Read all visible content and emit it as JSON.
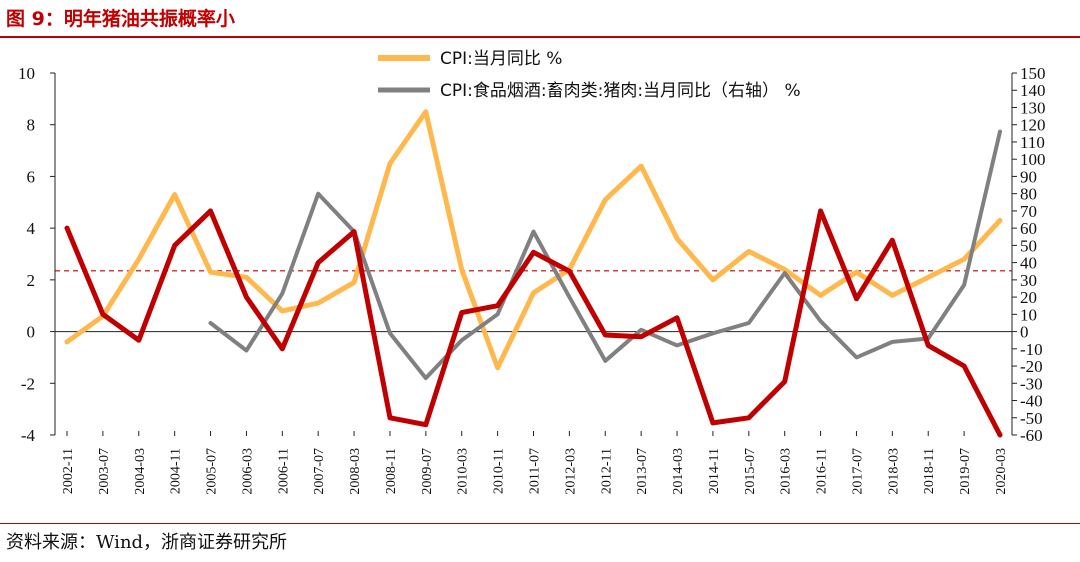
{
  "figure_title": "图 9：明年猪油共振概率小",
  "source": "资料来源：Wind，浙商证券研究所",
  "colors": {
    "title": "#c00000",
    "cpi": "#ffb84d",
    "food": "#808080",
    "pork": "#c00000",
    "reference_line": "#c00000"
  },
  "chart_data": {
    "type": "line",
    "x": [
      "2002-11",
      "2003-07",
      "2004-03",
      "2004-11",
      "2005-07",
      "2006-03",
      "2006-11",
      "2007-07",
      "2008-03",
      "2008-11",
      "2009-07",
      "2010-03",
      "2010-11",
      "2011-07",
      "2012-03",
      "2012-11",
      "2013-07",
      "2014-03",
      "2014-11",
      "2015-07",
      "2016-03",
      "2016-11",
      "2017-07",
      "2018-03",
      "2018-11",
      "2019-07",
      "2020-03"
    ],
    "ylim_left": [
      -4,
      10
    ],
    "yticks_left": [
      -4,
      -2,
      0,
      2,
      4,
      6,
      8,
      10
    ],
    "ylim_right": [
      -60,
      150
    ],
    "yticks_right": [
      -60,
      -50,
      -40,
      -30,
      -20,
      -10,
      0,
      10,
      20,
      30,
      40,
      50,
      60,
      70,
      80,
      90,
      100,
      110,
      120,
      130,
      140,
      150
    ],
    "reference_line": {
      "axis": "left",
      "value": 2.35,
      "style": "dashed"
    },
    "series": [
      {
        "name": "CPI:当月同比 %",
        "axis": "left",
        "values": [
          -0.4,
          0.6,
          2.8,
          5.3,
          2.3,
          2.1,
          0.8,
          1.1,
          1.9,
          6.5,
          8.5,
          2.4,
          -1.4,
          1.5,
          2.4,
          5.1,
          6.4,
          3.6,
          2.0,
          3.1,
          2.4,
          1.4,
          2.3,
          1.4,
          2.1,
          2.8,
          4.3
        ]
      },
      {
        "name": "CPI:食品烟酒:畜肉类:猪肉:当月同比（右轴） %",
        "axis": "right",
        "values": [
          null,
          null,
          null,
          null,
          5,
          -11,
          22,
          80,
          58,
          -1,
          -27,
          -5,
          10,
          58,
          20,
          -17,
          1,
          -8,
          -1,
          5,
          34,
          6,
          -15,
          -6,
          -4,
          27,
          116
        ]
      },
      {
        "name": "",
        "axis": "right",
        "values": [
          60,
          10,
          -5,
          50,
          70,
          20,
          -10,
          40,
          58,
          -50,
          -54,
          11,
          15,
          46,
          35,
          -2,
          -3,
          8,
          -53,
          -50,
          -29,
          70,
          19,
          53,
          -8,
          -20,
          -60
        ]
      }
    ]
  }
}
